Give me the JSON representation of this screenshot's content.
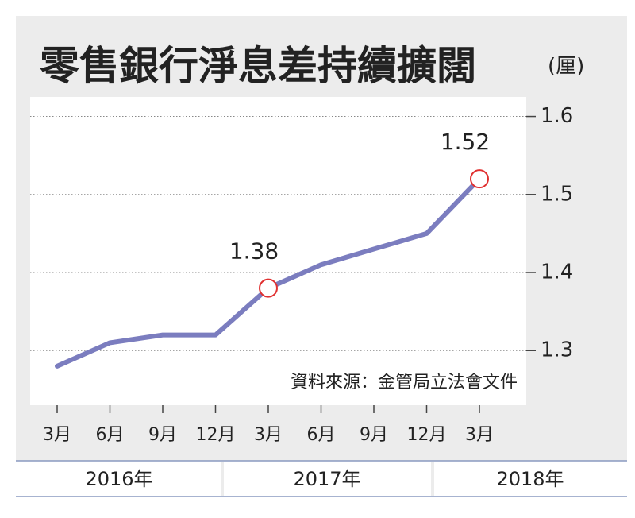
{
  "chart_data": {
    "type": "line",
    "title": "零售銀行淨息差持續擴闊",
    "y_label": "(厘)",
    "source": "資料來源：金管局立法會文件",
    "categories": [
      "3月",
      "6月",
      "9月",
      "12月",
      "3月",
      "6月",
      "9月",
      "12月",
      "3月"
    ],
    "year_labels": [
      "2016年",
      "2017年",
      "2018年"
    ],
    "values": [
      1.28,
      1.31,
      1.32,
      1.32,
      1.38,
      1.41,
      1.43,
      1.45,
      1.52
    ],
    "value_labels": [
      null,
      null,
      null,
      null,
      "1.38",
      null,
      null,
      null,
      "1.52"
    ],
    "color": "#7b7dbf",
    "marker_color": "#e03030",
    "ylim": [
      1.23,
      1.625
    ],
    "yticks": [
      1.3,
      1.4,
      1.5,
      1.6
    ],
    "grid": true
  }
}
